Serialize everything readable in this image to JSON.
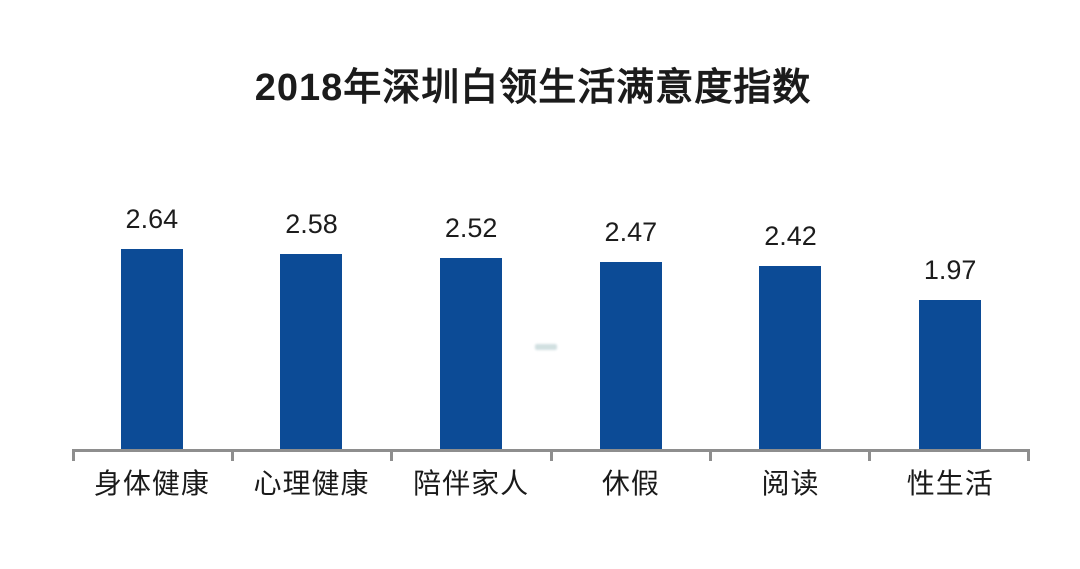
{
  "title": "2018年深圳白领生活满意度指数",
  "chart_data": {
    "type": "bar",
    "title": "2018年深圳白领生活满意度指数",
    "categories": [
      "身体健康",
      "心理健康",
      "陪伴家人",
      "休假",
      "阅读",
      "性生活"
    ],
    "values": [
      2.64,
      2.58,
      2.52,
      2.47,
      2.42,
      1.97
    ],
    "value_labels": [
      "2.64",
      "2.58",
      "2.52",
      "2.47",
      "2.42",
      "1.97"
    ],
    "xlabel": "",
    "ylabel": "",
    "ylim": [
      0,
      2.9
    ],
    "grid": false,
    "legend": false,
    "data_labels_position": "above-bars",
    "bar_color": "#0C4B96",
    "axis_color": "#8E8E8E",
    "text_color": "#1B1B1B",
    "background_color": "#FFFFFF"
  }
}
